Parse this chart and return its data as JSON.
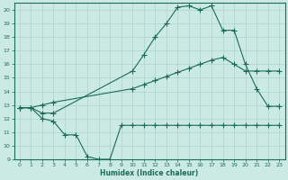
{
  "xlabel": "Humidex (Indice chaleur)",
  "xlim": [
    -0.5,
    23.5
  ],
  "ylim": [
    9,
    20.5
  ],
  "xticks": [
    0,
    1,
    2,
    3,
    4,
    5,
    6,
    7,
    8,
    9,
    10,
    11,
    12,
    13,
    14,
    15,
    16,
    17,
    18,
    19,
    20,
    21,
    22,
    23
  ],
  "yticks": [
    9,
    10,
    11,
    12,
    13,
    14,
    15,
    16,
    17,
    18,
    19,
    20
  ],
  "bg_color": "#cceae4",
  "grid_color": "#aad4cc",
  "line_color": "#1a6b5a",
  "line1_x": [
    0,
    1,
    2,
    3,
    10,
    11,
    12,
    13,
    14,
    15,
    16,
    17,
    18,
    19,
    20,
    21,
    22,
    23
  ],
  "line1_y": [
    12.8,
    12.8,
    12.4,
    12.4,
    15.5,
    16.7,
    18.0,
    19.0,
    20.2,
    20.3,
    20.0,
    20.3,
    18.5,
    18.5,
    16.0,
    14.2,
    12.9,
    12.9
  ],
  "line2_x": [
    0,
    1,
    2,
    3,
    10,
    11,
    12,
    13,
    14,
    15,
    16,
    17,
    18,
    19,
    20,
    21,
    22,
    23
  ],
  "line2_y": [
    12.8,
    12.8,
    13.0,
    13.2,
    14.2,
    14.5,
    14.8,
    15.1,
    15.4,
    15.7,
    16.0,
    16.3,
    16.5,
    16.0,
    15.5,
    15.5,
    15.5,
    15.5
  ],
  "line3_x": [
    0,
    1,
    2,
    3,
    4,
    5,
    6,
    7,
    8,
    9,
    10,
    11,
    12,
    13,
    14,
    15,
    16,
    17,
    18,
    19,
    20,
    21,
    22,
    23
  ],
  "line3_y": [
    12.8,
    12.8,
    12.0,
    11.8,
    10.8,
    10.8,
    9.2,
    9.0,
    9.0,
    11.5,
    11.5,
    11.5,
    11.5,
    11.5,
    11.5,
    11.5,
    11.5,
    11.5,
    11.5,
    11.5,
    11.5,
    11.5,
    11.5,
    11.5
  ]
}
